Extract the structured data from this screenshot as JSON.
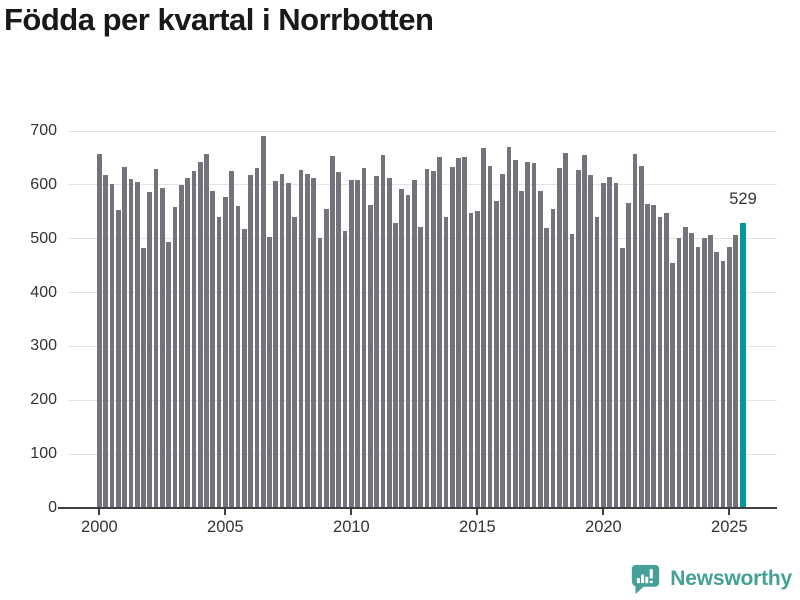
{
  "page": {
    "title": "Födda per kvartal i Norrbotten"
  },
  "chart_data": {
    "type": "bar",
    "title": "Födda per kvartal i Norrbotten",
    "x_unit": "quarter",
    "x_start": "2000-Q1",
    "x_end": "2025-Q3",
    "values": [
      657,
      618,
      601,
      553,
      634,
      610,
      606,
      483,
      586,
      629,
      594,
      494,
      558,
      599,
      612,
      625,
      643,
      657,
      589,
      540,
      578,
      625,
      561,
      518,
      618,
      632,
      690,
      504,
      607,
      620,
      604,
      541,
      628,
      621,
      612,
      501,
      555,
      654,
      623,
      515,
      609,
      609,
      632,
      562,
      617,
      656,
      612,
      529,
      592,
      582,
      609,
      522,
      630,
      626,
      651,
      541,
      633,
      649,
      651,
      548,
      552,
      669,
      635,
      570,
      621,
      671,
      647,
      589,
      643,
      641,
      588,
      520,
      555,
      632,
      659,
      509,
      627,
      655,
      618,
      540,
      603,
      615,
      604,
      482,
      567,
      657,
      635,
      564,
      563,
      540,
      547,
      455,
      502,
      522,
      510,
      484,
      502,
      506,
      475,
      459,
      485,
      507,
      529
    ],
    "ylim": [
      0,
      700
    ],
    "yticks": [
      0,
      100,
      200,
      300,
      400,
      500,
      600,
      700
    ],
    "xticks": [
      {
        "index": 0,
        "label": "2000"
      },
      {
        "index": 20,
        "label": "2005"
      },
      {
        "index": 40,
        "label": "2010"
      },
      {
        "index": 60,
        "label": "2015"
      },
      {
        "index": 80,
        "label": "2020"
      },
      {
        "index": 100,
        "label": "2025"
      }
    ],
    "grid": "horizontal",
    "legend": "none",
    "bar_color": "#73737b",
    "highlight": {
      "index": 102,
      "value": 529,
      "label": "529",
      "color": "#00989e"
    }
  },
  "branding": {
    "name": "Newsworthy",
    "icon": "newsworthy-speech-bubble-chart-icon",
    "color": "#46a09a"
  }
}
